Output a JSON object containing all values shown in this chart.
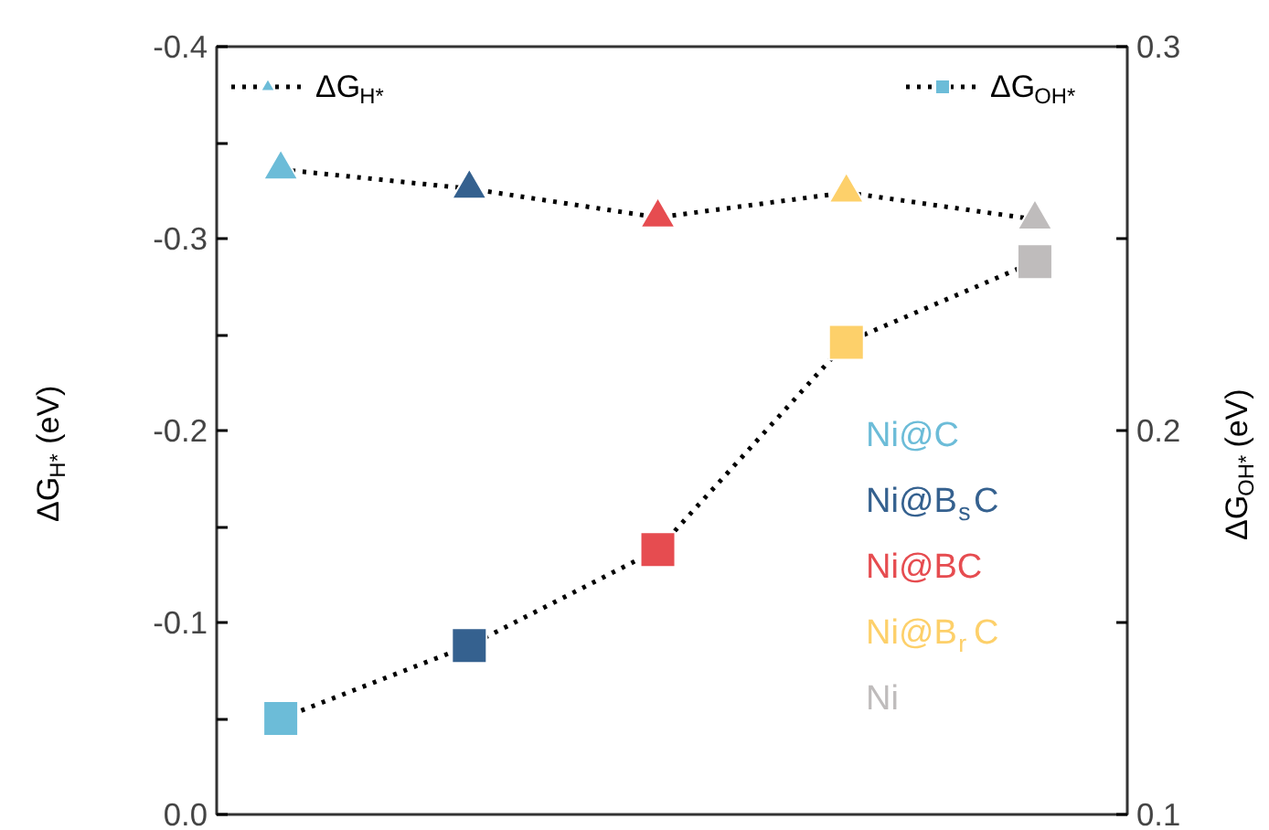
{
  "chart_data": {
    "type": "line",
    "categories": [
      null,
      null,
      null,
      null,
      null
    ],
    "series": [
      {
        "name": "ΔG$_{H*}$",
        "color": "#000000",
        "colors": [
          "#6cbcd8",
          "#35618f",
          "#e64c50",
          "#fdd06a",
          "#bfbcbc"
        ],
        "marker": "triangle",
        "values": [
          -0.336,
          -0.326,
          -0.311,
          -0.324,
          -0.31
        ]
      },
      {
        "name": "ΔG$_{OH*}$",
        "axis": "y2",
        "color": "#000000",
        "colors": [
          "#6cbcd8",
          "#35618f",
          "#e64c50",
          "#fdd06a",
          "#bfbcbc"
        ],
        "marker": "square",
        "values": [
          0.125,
          0.144,
          0.169,
          0.223,
          0.244
        ]
      }
    ],
    "ylabel": "ΔG$_{H*}$ (eV)",
    "y2label": "ΔG$_{OH*}$ (eV)",
    "ylim": [
      0.0,
      -0.4
    ],
    "yticks": [
      {
        "value": 0.0,
        "label": "0.0"
      },
      {
        "value": -0.05,
        "label": null
      },
      {
        "value": -0.1,
        "label": "-0.1"
      },
      {
        "value": -0.15,
        "label": null
      },
      {
        "value": -0.2,
        "label": "-0.2"
      },
      {
        "value": -0.25,
        "label": null
      },
      {
        "value": -0.3,
        "label": "-0.3"
      },
      {
        "value": -0.35,
        "label": null
      },
      {
        "value": -0.4,
        "label": "-0.4"
      }
    ],
    "y2lim": [
      0.1,
      0.3
    ],
    "y2ticks": [
      {
        "value": 0.1,
        "label": "0.1"
      },
      {
        "value": 0.15,
        "label": null
      },
      {
        "value": 0.2,
        "label": "0.2"
      },
      {
        "value": 0.25,
        "label": null
      },
      {
        "value": 0.3,
        "label": "0.3"
      }
    ],
    "annotations": [
      "Ni@C",
      "Ni@B$_{s}$C",
      "Ni@BC",
      "Ni@B$_{r}$C",
      "Ni"
    ],
    "line_style": "dotted",
    "legend": "top",
    "grid": false
  }
}
